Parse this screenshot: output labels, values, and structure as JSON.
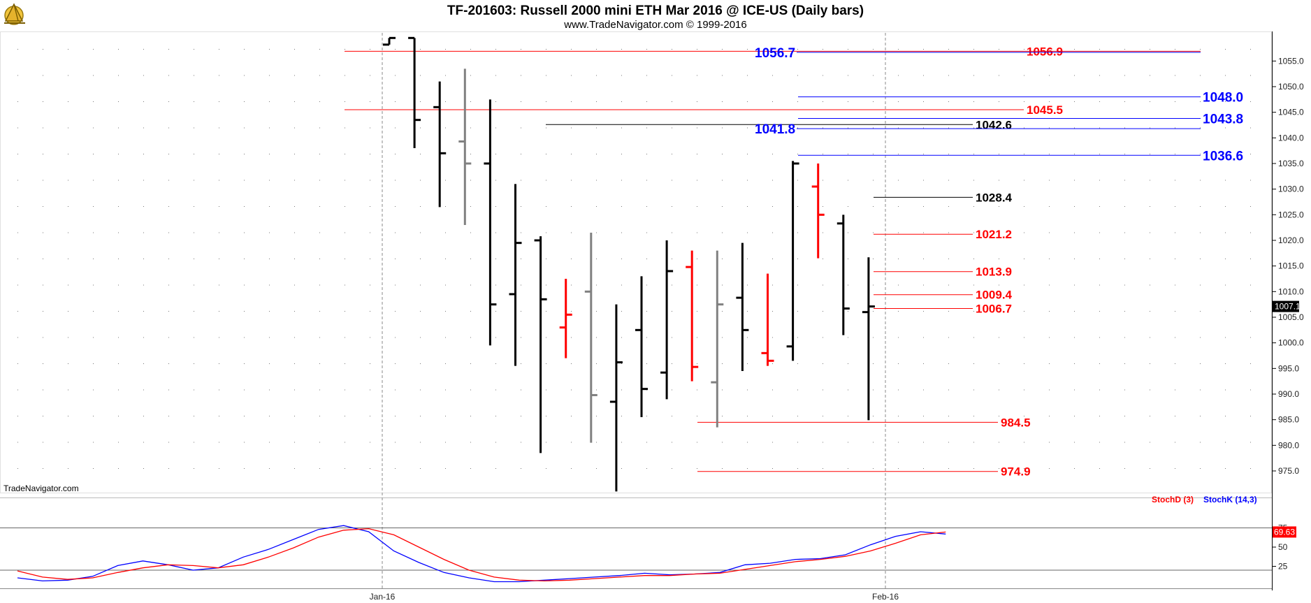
{
  "header": {
    "title": "TF-201603:  Russell 2000 mini ETH Mar 2016 @ ICE-US  (Daily bars)",
    "subtitle": "www.TradeNavigator.com © 1999-2016"
  },
  "watermark": "TradeNavigator.com",
  "logo_icon": "sextant-logo-icon",
  "colors": {
    "up_bar": "#000000",
    "down_bar": "#ff0000",
    "neutral_bar": "#808080",
    "red_level": "#ff0000",
    "blue_level": "#0000ff",
    "black_level": "#000000",
    "stochd": "#ff0000",
    "stochk": "#0000ff"
  },
  "chart_data": [
    {
      "type": "ohlc",
      "name": "price",
      "ylim": [
        970.5,
        1060.5
      ],
      "yticks": [
        975.0,
        980.0,
        985.0,
        990.0,
        995.0,
        1000.0,
        1005.0,
        1010.0,
        1015.0,
        1020.0,
        1025.0,
        1030.0,
        1035.0,
        1040.0,
        1045.0,
        1050.0,
        1055.0
      ],
      "ytick_labels": [
        "975.0",
        "980.0",
        "985.0",
        "990.0",
        "995.0",
        "1000.0",
        "1005.0",
        "1010.0",
        "1015.0",
        "1020.0",
        "1025.0",
        "1030.0",
        "1035.0",
        "1040.0",
        "1045.0",
        "1050.0",
        "1055.0"
      ],
      "x_labels": [
        {
          "label": "Jan-16",
          "after_bar": -1
        },
        {
          "label": "Feb-16",
          "after_bar": 16
        }
      ],
      "last_value": "1007.1",
      "bars": [
        {
          "o": 1058.2,
          "h": 1059.5,
          "l": 1058.2,
          "c": 1059.5,
          "col": "up"
        },
        {
          "o": 1059.5,
          "h": 1059.5,
          "l": 1038.0,
          "c": 1043.5,
          "col": "up"
        },
        {
          "o": 1046.0,
          "h": 1051.0,
          "l": 1026.5,
          "c": 1037.0,
          "col": "up"
        },
        {
          "o": 1039.3,
          "h": 1053.5,
          "l": 1023.0,
          "c": 1035.0,
          "col": "neutral"
        },
        {
          "o": 1035.0,
          "h": 1047.5,
          "l": 999.5,
          "c": 1007.5,
          "col": "up"
        },
        {
          "o": 1009.5,
          "h": 1031.0,
          "l": 995.5,
          "c": 1019.5,
          "col": "up"
        },
        {
          "o": 1020.0,
          "h": 1020.8,
          "l": 978.5,
          "c": 1008.5,
          "col": "up"
        },
        {
          "o": 1003.0,
          "h": 1012.5,
          "l": 997.0,
          "c": 1005.5,
          "col": "down"
        },
        {
          "o": 1010.0,
          "h": 1021.5,
          "l": 980.5,
          "c": 989.8,
          "col": "neutral"
        },
        {
          "o": 988.5,
          "h": 1007.5,
          "l": 971.0,
          "c": 996.2,
          "col": "up"
        },
        {
          "o": 1002.5,
          "h": 1013.0,
          "l": 985.5,
          "c": 991.0,
          "col": "up"
        },
        {
          "o": 994.2,
          "h": 1020.0,
          "l": 989.0,
          "c": 1014.0,
          "col": "up"
        },
        {
          "o": 1014.8,
          "h": 1018.0,
          "l": 992.5,
          "c": 995.3,
          "col": "down"
        },
        {
          "o": 992.3,
          "h": 1018.0,
          "l": 983.5,
          "c": 1007.5,
          "col": "neutral"
        },
        {
          "o": 1008.8,
          "h": 1019.5,
          "l": 994.5,
          "c": 1002.5,
          "col": "up"
        },
        {
          "o": 998.0,
          "h": 1013.5,
          "l": 995.5,
          "c": 996.5,
          "col": "down"
        },
        {
          "o": 999.3,
          "h": 1035.5,
          "l": 996.5,
          "c": 1035.0,
          "col": "up"
        },
        {
          "o": 1030.5,
          "h": 1035.0,
          "l": 1016.5,
          "c": 1025.0,
          "col": "down"
        },
        {
          "o": 1023.3,
          "h": 1025.0,
          "l": 1001.5,
          "c": 1006.7,
          "col": "up"
        },
        {
          "o": 1006.0,
          "h": 1016.7,
          "l": 984.9,
          "c": 1007.1,
          "col": "up"
        }
      ],
      "levels": [
        {
          "value": 1056.9,
          "label": "1056.9",
          "color": "red",
          "from_bar": -2,
          "label_side": "right"
        },
        {
          "value": 1056.7,
          "label": "1056.7",
          "color": "blue",
          "from_bar": 11,
          "label_side": "left"
        },
        {
          "value": 1048.0,
          "label": "1048.0",
          "color": "blue",
          "from_bar": 12,
          "label_side": "far"
        },
        {
          "value": 1045.5,
          "label": "1045.5",
          "color": "red",
          "from_bar": -2,
          "label_side": "right"
        },
        {
          "value": 1043.8,
          "label": "1043.8",
          "color": "blue",
          "from_bar": 12,
          "label_side": "far"
        },
        {
          "value": 1042.6,
          "label": "1042.6",
          "color": "black",
          "from_bar": 3,
          "label_side": "right"
        },
        {
          "value": 1041.8,
          "label": "1041.8",
          "color": "blue",
          "from_bar": 12,
          "label_side": "left"
        },
        {
          "value": 1036.6,
          "label": "1036.6",
          "color": "blue",
          "from_bar": 12,
          "label_side": "far"
        },
        {
          "value": 1028.4,
          "label": "1028.4",
          "color": "black",
          "from_bar": 16,
          "label_side": "right"
        },
        {
          "value": 1021.2,
          "label": "1021.2",
          "color": "red",
          "from_bar": 16,
          "label_side": "right"
        },
        {
          "value": 1013.9,
          "label": "1013.9",
          "color": "red",
          "from_bar": 16,
          "label_side": "right"
        },
        {
          "value": 1009.4,
          "label": "1009.4",
          "color": "red",
          "from_bar": 16,
          "label_side": "right"
        },
        {
          "value": 1006.7,
          "label": "1006.7",
          "color": "red",
          "from_bar": 16,
          "label_side": "right"
        },
        {
          "value": 984.5,
          "label": "984.5",
          "color": "red",
          "from_bar": 9,
          "label_side": "right2"
        },
        {
          "value": 974.9,
          "label": "974.9",
          "color": "red",
          "from_bar": 9,
          "label_side": "right2"
        }
      ]
    },
    {
      "type": "line",
      "name": "stochastic",
      "ylim": [
        0,
        100
      ],
      "yticks": [
        25,
        50,
        75
      ],
      "ytick_labels": [
        "25",
        "50",
        "75"
      ],
      "reference_lines": [
        75,
        20
      ],
      "legend": [
        {
          "label": "StochD (3)",
          "color": "red"
        },
        {
          "label": "StochK (14,3)",
          "color": "blue"
        }
      ],
      "last_value": "69.63",
      "x_start": -15,
      "series": [
        {
          "name": "StochK (14,3)",
          "values": [
            10,
            6,
            7,
            12,
            26,
            32,
            27,
            20,
            23,
            37,
            47,
            60,
            73,
            78,
            70,
            45,
            30,
            17,
            10,
            5,
            5,
            7,
            9,
            11,
            13,
            16,
            14,
            15,
            17,
            27,
            29,
            34,
            35,
            40,
            53,
            64,
            70,
            67
          ]
        },
        {
          "name": "StochD (3)",
          "values": [
            19,
            11,
            8,
            10,
            17,
            23,
            27,
            26,
            23,
            27,
            37,
            49,
            63,
            72,
            74,
            66,
            50,
            34,
            20,
            11,
            7,
            6,
            7,
            9,
            11,
            13,
            13,
            15,
            16,
            21,
            26,
            31,
            34,
            38,
            45,
            55,
            66,
            69.63
          ]
        }
      ]
    }
  ]
}
